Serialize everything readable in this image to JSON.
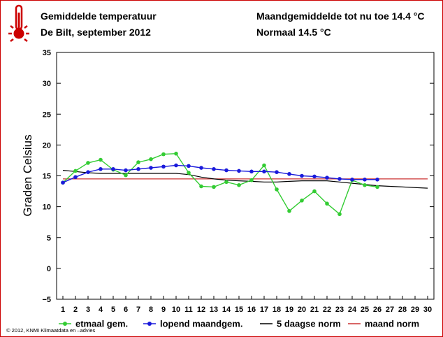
{
  "header": {
    "title": "Gemiddelde temperatuur",
    "subtitle": "De Bilt, september 2012",
    "month_avg_label": "Maandgemiddelde tot nu toe 14.4 °C",
    "normal_label": "Normaal 14.5 °C"
  },
  "footer": {
    "copyright": "© 2012, KNMI Klimaatdata en –advies"
  },
  "colors": {
    "frame": "#cc0000",
    "etmaal": "#33cc33",
    "lopend": "#1a1adb",
    "norm5": "#000000",
    "maandnorm": "#cc3333"
  },
  "chart_data": {
    "type": "line",
    "title": "Gemiddelde temperatuur — De Bilt, september 2012",
    "xlabel": "",
    "ylabel": "Graden Celsius",
    "xlim": [
      1,
      30
    ],
    "ylim": [
      -5,
      35
    ],
    "x_ticks": [
      1,
      2,
      3,
      4,
      5,
      6,
      7,
      8,
      9,
      10,
      11,
      12,
      13,
      14,
      15,
      16,
      17,
      18,
      19,
      20,
      21,
      22,
      23,
      24,
      25,
      26,
      27,
      28,
      29,
      30
    ],
    "y_ticks": [
      -5,
      0,
      5,
      10,
      15,
      20,
      25,
      30,
      35
    ],
    "grid": false,
    "legend_position": "bottom",
    "series": [
      {
        "name": "etmaal gem.",
        "color": "#33cc33",
        "markers": true,
        "x": [
          1,
          2,
          3,
          4,
          5,
          6,
          7,
          8,
          9,
          10,
          11,
          12,
          13,
          14,
          15,
          16,
          17,
          18,
          19,
          20,
          21,
          22,
          23,
          24,
          25,
          26
        ],
        "values": [
          13.9,
          15.8,
          17.1,
          17.6,
          16.0,
          15.1,
          17.2,
          17.7,
          18.5,
          18.6,
          15.5,
          13.3,
          13.2,
          14.0,
          13.5,
          14.3,
          16.7,
          12.8,
          9.3,
          11.0,
          12.5,
          10.5,
          8.8,
          14.3,
          13.5,
          13.2
        ]
      },
      {
        "name": "lopend maandgem.",
        "color": "#1a1adb",
        "markers": true,
        "x": [
          1,
          2,
          3,
          4,
          5,
          6,
          7,
          8,
          9,
          10,
          11,
          12,
          13,
          14,
          15,
          16,
          17,
          18,
          19,
          20,
          21,
          22,
          23,
          24,
          25,
          26
        ],
        "values": [
          13.9,
          14.8,
          15.6,
          16.1,
          16.1,
          15.9,
          16.1,
          16.3,
          16.5,
          16.7,
          16.6,
          16.3,
          16.1,
          15.9,
          15.8,
          15.7,
          15.7,
          15.6,
          15.3,
          15.0,
          14.9,
          14.7,
          14.5,
          14.4,
          14.4,
          14.4
        ]
      },
      {
        "name": "5 daagse norm",
        "color": "#000000",
        "markers": false,
        "x": [
          1,
          2,
          3,
          4,
          5,
          6,
          7,
          8,
          9,
          10,
          11,
          12,
          13,
          14,
          15,
          16,
          17,
          18,
          19,
          20,
          21,
          22,
          23,
          24,
          25,
          26,
          27,
          28,
          29,
          30
        ],
        "values": [
          15.9,
          15.7,
          15.5,
          15.4,
          15.4,
          15.4,
          15.4,
          15.4,
          15.4,
          15.4,
          15.2,
          14.8,
          14.5,
          14.3,
          14.2,
          14.1,
          14.0,
          14.0,
          14.1,
          14.2,
          14.2,
          14.2,
          14.0,
          13.8,
          13.6,
          13.4,
          13.3,
          13.2,
          13.1,
          13.0
        ]
      },
      {
        "name": "maand norm",
        "color": "#cc3333",
        "markers": false,
        "x": [
          1,
          30
        ],
        "values": [
          14.5,
          14.5
        ]
      }
    ]
  }
}
